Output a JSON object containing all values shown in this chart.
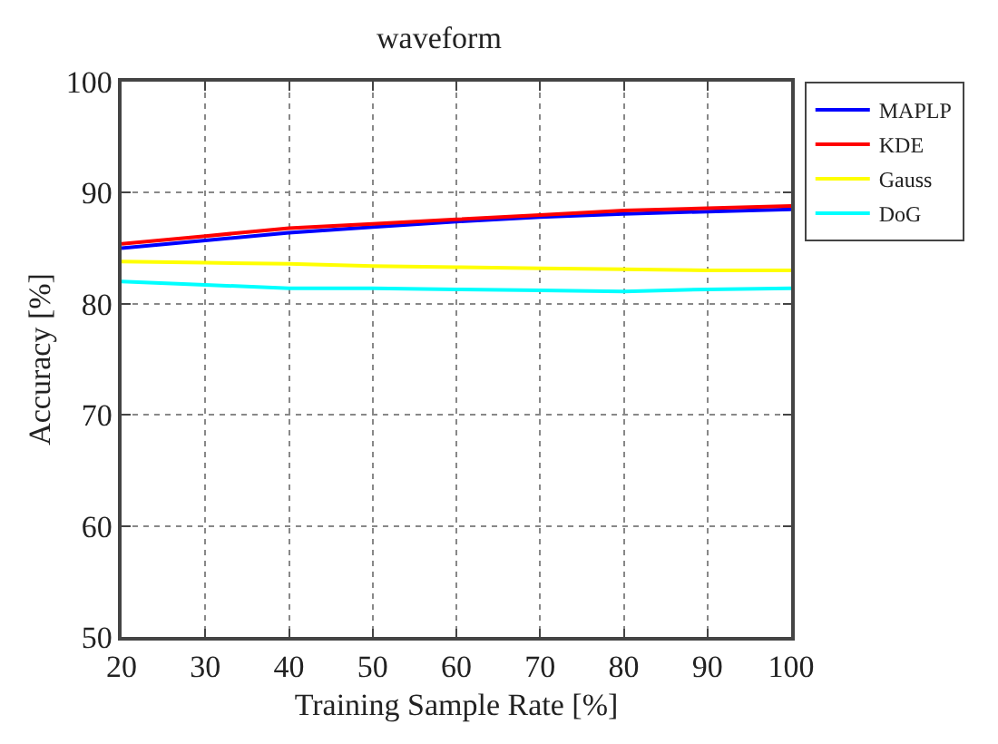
{
  "chart_data": {
    "type": "line",
    "title": "waveform",
    "xlabel": "Training Sample Rate [%]",
    "ylabel": "Accuracy [%]",
    "x": [
      20,
      30,
      40,
      50,
      60,
      70,
      80,
      90,
      100
    ],
    "series": [
      {
        "name": "MAPLP",
        "color": "#0000ff",
        "values": [
          85.0,
          85.7,
          86.4,
          86.9,
          87.4,
          87.8,
          88.1,
          88.3,
          88.5
        ]
      },
      {
        "name": "KDE",
        "color": "#ff0000",
        "values": [
          85.4,
          86.1,
          86.8,
          87.2,
          87.6,
          88.0,
          88.4,
          88.6,
          88.8
        ]
      },
      {
        "name": "Gauss",
        "color": "#ffff00",
        "values": [
          83.8,
          83.7,
          83.6,
          83.4,
          83.3,
          83.2,
          83.1,
          83.0,
          83.0
        ]
      },
      {
        "name": "DoG",
        "color": "#00ffff",
        "values": [
          82.0,
          81.7,
          81.4,
          81.4,
          81.3,
          81.2,
          81.1,
          81.3,
          81.4
        ]
      }
    ],
    "xlim": [
      20,
      100
    ],
    "xticks": [
      20,
      30,
      40,
      50,
      60,
      70,
      80,
      90,
      100
    ],
    "ylim": [
      50,
      100
    ],
    "yticks": [
      50,
      60,
      70,
      80,
      90,
      100
    ],
    "grid": true,
    "legend": "top right",
    "marker": "none",
    "line_style": "solid"
  }
}
